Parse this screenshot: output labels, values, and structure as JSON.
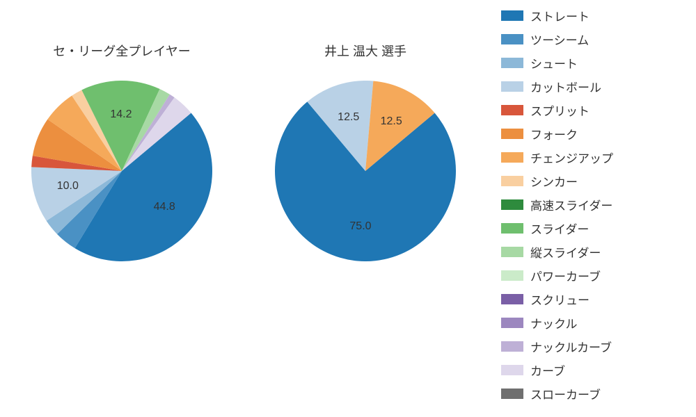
{
  "background_color": "#ffffff",
  "pie_colors": {
    "straight": "#1f77b4",
    "two_seam": "#4a91c4",
    "shoot": "#8cb8d8",
    "cutball": "#b9d1e6",
    "split": "#d8563b",
    "fork": "#ec8f3f",
    "changeup": "#f5a95a",
    "sinker": "#f9cfa0",
    "fast_slider": "#2e8b3d",
    "slider": "#6fbf6e",
    "vert_slider": "#a7d9a4",
    "power_curve": "#cbebc9",
    "screw": "#7a5fa6",
    "knuckle": "#9c87bf",
    "knuckle_curve": "#beb0d6",
    "curve": "#ded7eb",
    "slow_curve": "#6f6f6f"
  },
  "chart_left": {
    "title": "セ・リーグ全プレイヤー",
    "radius": 130,
    "slices": [
      {
        "name": "straight",
        "value": 44.8,
        "label": "44.8"
      },
      {
        "name": "two_seam",
        "value": 4.0
      },
      {
        "name": "shoot",
        "value": 3.0
      },
      {
        "name": "cutball",
        "value": 10.0,
        "label": "10.0"
      },
      {
        "name": "split",
        "value": 2.0
      },
      {
        "name": "fork",
        "value": 7.0
      },
      {
        "name": "changeup",
        "value": 6.0
      },
      {
        "name": "sinker",
        "value": 2.0
      },
      {
        "name": "slider",
        "value": 14.2,
        "label": "14.2"
      },
      {
        "name": "vert_slider",
        "value": 2.0
      },
      {
        "name": "knuckle_curve",
        "value": 1.0
      },
      {
        "name": "curve",
        "value": 4.0
      }
    ],
    "start_angle_deg": -40,
    "label_r_factor": 0.62
  },
  "chart_right": {
    "title": "井上 温大   選手",
    "radius": 130,
    "slices": [
      {
        "name": "straight",
        "value": 75.0,
        "label": "75.0"
      },
      {
        "name": "cutball",
        "value": 12.5,
        "label": "12.5"
      },
      {
        "name": "changeup",
        "value": 12.5,
        "label": "12.5"
      }
    ],
    "start_angle_deg": -40,
    "label_r_factor": 0.62
  },
  "legend": {
    "title": null,
    "items": [
      {
        "key": "straight",
        "label": "ストレート"
      },
      {
        "key": "two_seam",
        "label": "ツーシーム"
      },
      {
        "key": "shoot",
        "label": "シュート"
      },
      {
        "key": "cutball",
        "label": "カットボール"
      },
      {
        "key": "split",
        "label": "スプリット"
      },
      {
        "key": "fork",
        "label": "フォーク"
      },
      {
        "key": "changeup",
        "label": "チェンジアップ"
      },
      {
        "key": "sinker",
        "label": "シンカー"
      },
      {
        "key": "fast_slider",
        "label": "高速スライダー"
      },
      {
        "key": "slider",
        "label": "スライダー"
      },
      {
        "key": "vert_slider",
        "label": "縦スライダー"
      },
      {
        "key": "power_curve",
        "label": "パワーカーブ"
      },
      {
        "key": "screw",
        "label": "スクリュー"
      },
      {
        "key": "knuckle",
        "label": "ナックル"
      },
      {
        "key": "knuckle_curve",
        "label": "ナックルカーブ"
      },
      {
        "key": "curve",
        "label": "カーブ"
      },
      {
        "key": "slow_curve",
        "label": "スローカーブ"
      }
    ]
  },
  "label_fontsize": 16,
  "title_fontsize": 18
}
